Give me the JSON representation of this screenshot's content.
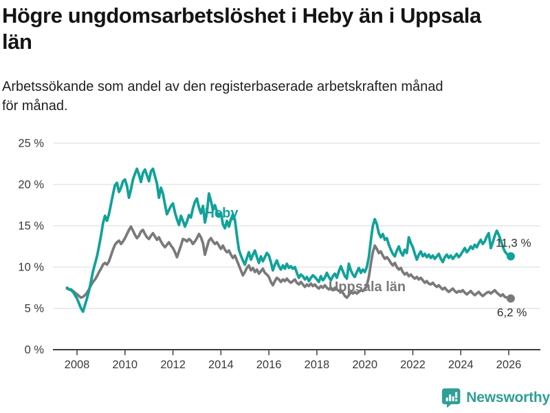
{
  "header": {
    "title_line1": "Högre ungdomsarbetslöshet i Heby än i Uppsala",
    "title_line2": "län",
    "subtitle_line1": "Arbetssökande som andel av den registerbaserade arbetskraften månad",
    "subtitle_line2": "för månad."
  },
  "footer": {
    "brand": "Newsworthy"
  },
  "colors": {
    "heby": "#10a299",
    "uppsala": "#7a7a7a",
    "grid": "#dadada",
    "axis": "#3d3d3d",
    "tick_text": "#3a3a3a",
    "value_label_text": "#2e2e2e",
    "logo": "#2f9e98"
  },
  "chart_data": {
    "type": "line",
    "title": "Högre ungdomsarbetslöshet i Heby än i Uppsala län",
    "subtitle": "Arbetssökande som andel av den registerbaserade arbetskraften månad för månad.",
    "unit": "%",
    "interval": "monthly",
    "x_start": {
      "year": 2007,
      "month": 8
    },
    "x_end": {
      "year": 2026,
      "month": 2
    },
    "x_tick_labels": [
      "2008",
      "2010",
      "2012",
      "2014",
      "2016",
      "2018",
      "2020",
      "2022",
      "2024",
      "2026"
    ],
    "y_ticks": [
      {
        "value": 0,
        "label": "0 %"
      },
      {
        "value": 5,
        "label": "5 %"
      },
      {
        "value": 10,
        "label": "10 %"
      },
      {
        "value": 15,
        "label": "15 %"
      },
      {
        "value": 20,
        "label": "20 %"
      },
      {
        "value": 25,
        "label": "25 %"
      }
    ],
    "y_range": [
      0,
      25
    ],
    "grid": true,
    "legend_position": "inline-labels",
    "series": [
      {
        "name": "Uppsala län",
        "color": "#7a7a7a",
        "end_label": "6,2 %",
        "latest_value": 6.2,
        "values": [
          7.4,
          7.3,
          7.3,
          7.1,
          6.9,
          6.7,
          6.5,
          6.3,
          6.4,
          6.6,
          6.9,
          7.3,
          7.8,
          8.2,
          8.5,
          8.9,
          9.4,
          9.8,
          10.3,
          10.5,
          10.3,
          10.7,
          11.4,
          12.1,
          12.7,
          13.0,
          13.2,
          12.8,
          13.1,
          13.5,
          14.0,
          14.5,
          14.9,
          14.4,
          13.9,
          13.5,
          13.8,
          14.3,
          14.5,
          14.0,
          13.6,
          13.4,
          13.8,
          14.1,
          13.7,
          13.3,
          13.6,
          13.1,
          12.7,
          12.4,
          12.7,
          13.0,
          12.6,
          12.3,
          11.8,
          11.2,
          11.9,
          12.6,
          13.4,
          13.3,
          13.1,
          13.4,
          13.2,
          12.8,
          13.1,
          13.5,
          14.0,
          13.6,
          12.9,
          11.5,
          12.4,
          13.2,
          13.5,
          13.1,
          12.8,
          13.0,
          12.6,
          12.2,
          12.6,
          12.1,
          11.8,
          12.0,
          11.5,
          11.1,
          11.4,
          10.8,
          10.2,
          9.6,
          9.0,
          9.4,
          9.9,
          10.2,
          9.6,
          9.9,
          9.4,
          9.7,
          9.2,
          9.5,
          9.8,
          9.3,
          9.1,
          8.8,
          8.2,
          7.8,
          8.3,
          8.7,
          8.5,
          8.2,
          8.5,
          8.3,
          8.6,
          8.3,
          8.1,
          8.3,
          8.5,
          8.1,
          7.9,
          8.2,
          7.9,
          7.6,
          7.9,
          7.7,
          8.0,
          7.7,
          7.9,
          7.6,
          7.4,
          7.7,
          7.5,
          7.8,
          7.5,
          7.3,
          7.5,
          7.2,
          7.5,
          7.3,
          7.1,
          7.2,
          6.9,
          6.5,
          6.3,
          6.6,
          7.0,
          6.8,
          7.0,
          6.8,
          7.0,
          7.2,
          7.1,
          7.3,
          7.8,
          8.8,
          10.4,
          11.8,
          12.6,
          12.2,
          11.7,
          11.9,
          11.4,
          11.0,
          11.2,
          10.9,
          10.5,
          10.2,
          10.5,
          10.0,
          9.7,
          9.9,
          9.4,
          9.1,
          9.3,
          8.9,
          9.1,
          8.8,
          8.6,
          8.8,
          8.5,
          8.7,
          8.4,
          8.1,
          8.3,
          8.0,
          7.9,
          8.1,
          7.8,
          7.6,
          7.8,
          7.5,
          7.3,
          7.5,
          7.2,
          7.0,
          7.2,
          7.4,
          7.1,
          6.9,
          7.1,
          7.0,
          7.2,
          6.9,
          6.7,
          6.9,
          7.1,
          6.8,
          6.6,
          6.8,
          7.0,
          6.7,
          6.5,
          6.7,
          6.9,
          7.0,
          6.8,
          7.0,
          7.2,
          6.9,
          6.7,
          6.5,
          6.7,
          6.4,
          6.3,
          6.2,
          6.2
        ]
      },
      {
        "name": "Heby",
        "color": "#10a299",
        "end_label": "11,3 %",
        "latest_value": 11.3,
        "values": [
          7.5,
          7.3,
          7.2,
          7.0,
          6.6,
          6.2,
          5.6,
          5.0,
          4.6,
          5.4,
          6.2,
          7.1,
          8.3,
          9.5,
          10.4,
          11.3,
          12.5,
          13.8,
          15.3,
          16.2,
          15.6,
          16.4,
          17.6,
          18.8,
          19.9,
          20.2,
          19.1,
          19.6,
          20.4,
          20.6,
          19.8,
          18.4,
          19.4,
          20.6,
          21.3,
          21.9,
          21.2,
          20.3,
          21.4,
          21.8,
          21.1,
          20.4,
          21.6,
          21.9,
          21.0,
          20.1,
          18.4,
          19.6,
          18.9,
          17.6,
          16.4,
          16.9,
          17.4,
          17.7,
          16.6,
          15.8,
          15.1,
          16.2,
          15.6,
          14.9,
          15.5,
          16.3,
          16.0,
          17.1,
          17.9,
          18.3,
          17.2,
          16.5,
          17.4,
          15.4,
          16.6,
          18.9,
          18.0,
          16.9,
          17.5,
          16.7,
          16.1,
          16.6,
          15.2,
          14.7,
          15.6,
          14.9,
          15.8,
          16.4,
          15.7,
          13.8,
          12.1,
          11.4,
          10.8,
          10.3,
          11.1,
          11.8,
          10.9,
          11.5,
          12.0,
          11.2,
          10.5,
          11.3,
          10.7,
          11.2,
          11.7,
          11.4,
          10.6,
          9.6,
          10.3,
          10.8,
          10.1,
          9.7,
          10.2,
          9.8,
          10.4,
          9.9,
          10.1,
          9.8,
          10.0,
          9.3,
          8.7,
          9.1,
          8.9,
          8.5,
          8.8,
          8.3,
          8.7,
          9.0,
          8.8,
          8.5,
          8.2,
          8.9,
          8.4,
          8.7,
          9.3,
          8.8,
          8.4,
          8.9,
          9.2,
          8.7,
          9.5,
          10.1,
          9.5,
          8.9,
          8.6,
          10.4,
          9.6,
          9.1,
          8.8,
          9.4,
          9.9,
          9.3,
          9.7,
          9.4,
          10.0,
          11.2,
          13.2,
          15.0,
          15.8,
          15.2,
          14.1,
          13.6,
          14.0,
          13.3,
          13.5,
          12.7,
          12.1,
          11.6,
          11.3,
          12.0,
          12.5,
          11.8,
          11.4,
          12.1,
          11.7,
          13.6,
          12.9,
          12.4,
          11.6,
          10.9,
          11.5,
          11.9,
          11.3,
          11.6,
          11.2,
          11.5,
          11.1,
          11.4,
          11.0,
          11.3,
          11.6,
          11.0,
          10.6,
          11.2,
          11.5,
          11.1,
          11.4,
          11.0,
          11.3,
          11.6,
          11.2,
          11.5,
          11.9,
          12.3,
          11.8,
          12.1,
          12.5,
          12.2,
          12.7,
          12.4,
          12.9,
          13.3,
          12.8,
          13.1,
          13.7,
          14.1,
          12.3,
          13.0,
          13.8,
          14.4,
          13.9,
          13.2,
          12.5,
          11.9,
          11.6,
          11.4,
          11.3
        ]
      }
    ]
  }
}
